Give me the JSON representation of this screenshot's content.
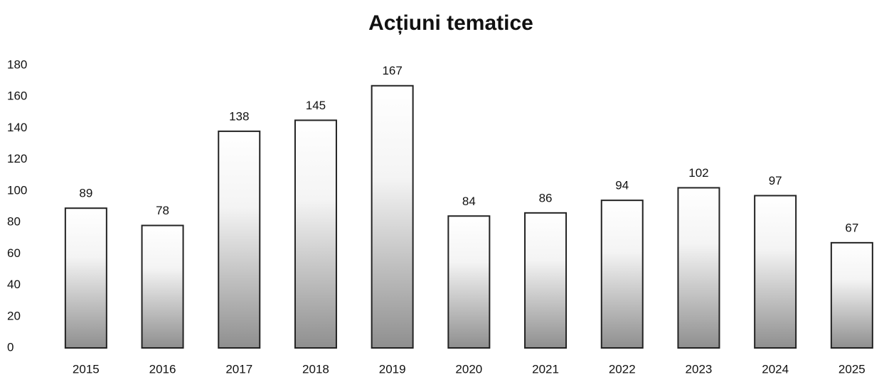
{
  "chart_data": {
    "type": "bar",
    "title": "Acțiuni tematice",
    "categories": [
      "2015",
      "2016",
      "2017",
      "2018",
      "2019",
      "2020",
      "2021",
      "2022",
      "2023",
      "2024",
      "2025"
    ],
    "values": [
      89,
      78,
      138,
      145,
      167,
      84,
      86,
      94,
      102,
      97,
      67
    ],
    "color": "#8f8f8f",
    "ylim": [
      0,
      180
    ],
    "yticks": [
      0,
      20,
      40,
      60,
      80,
      100,
      120,
      140,
      160,
      180
    ],
    "grid": false
  }
}
